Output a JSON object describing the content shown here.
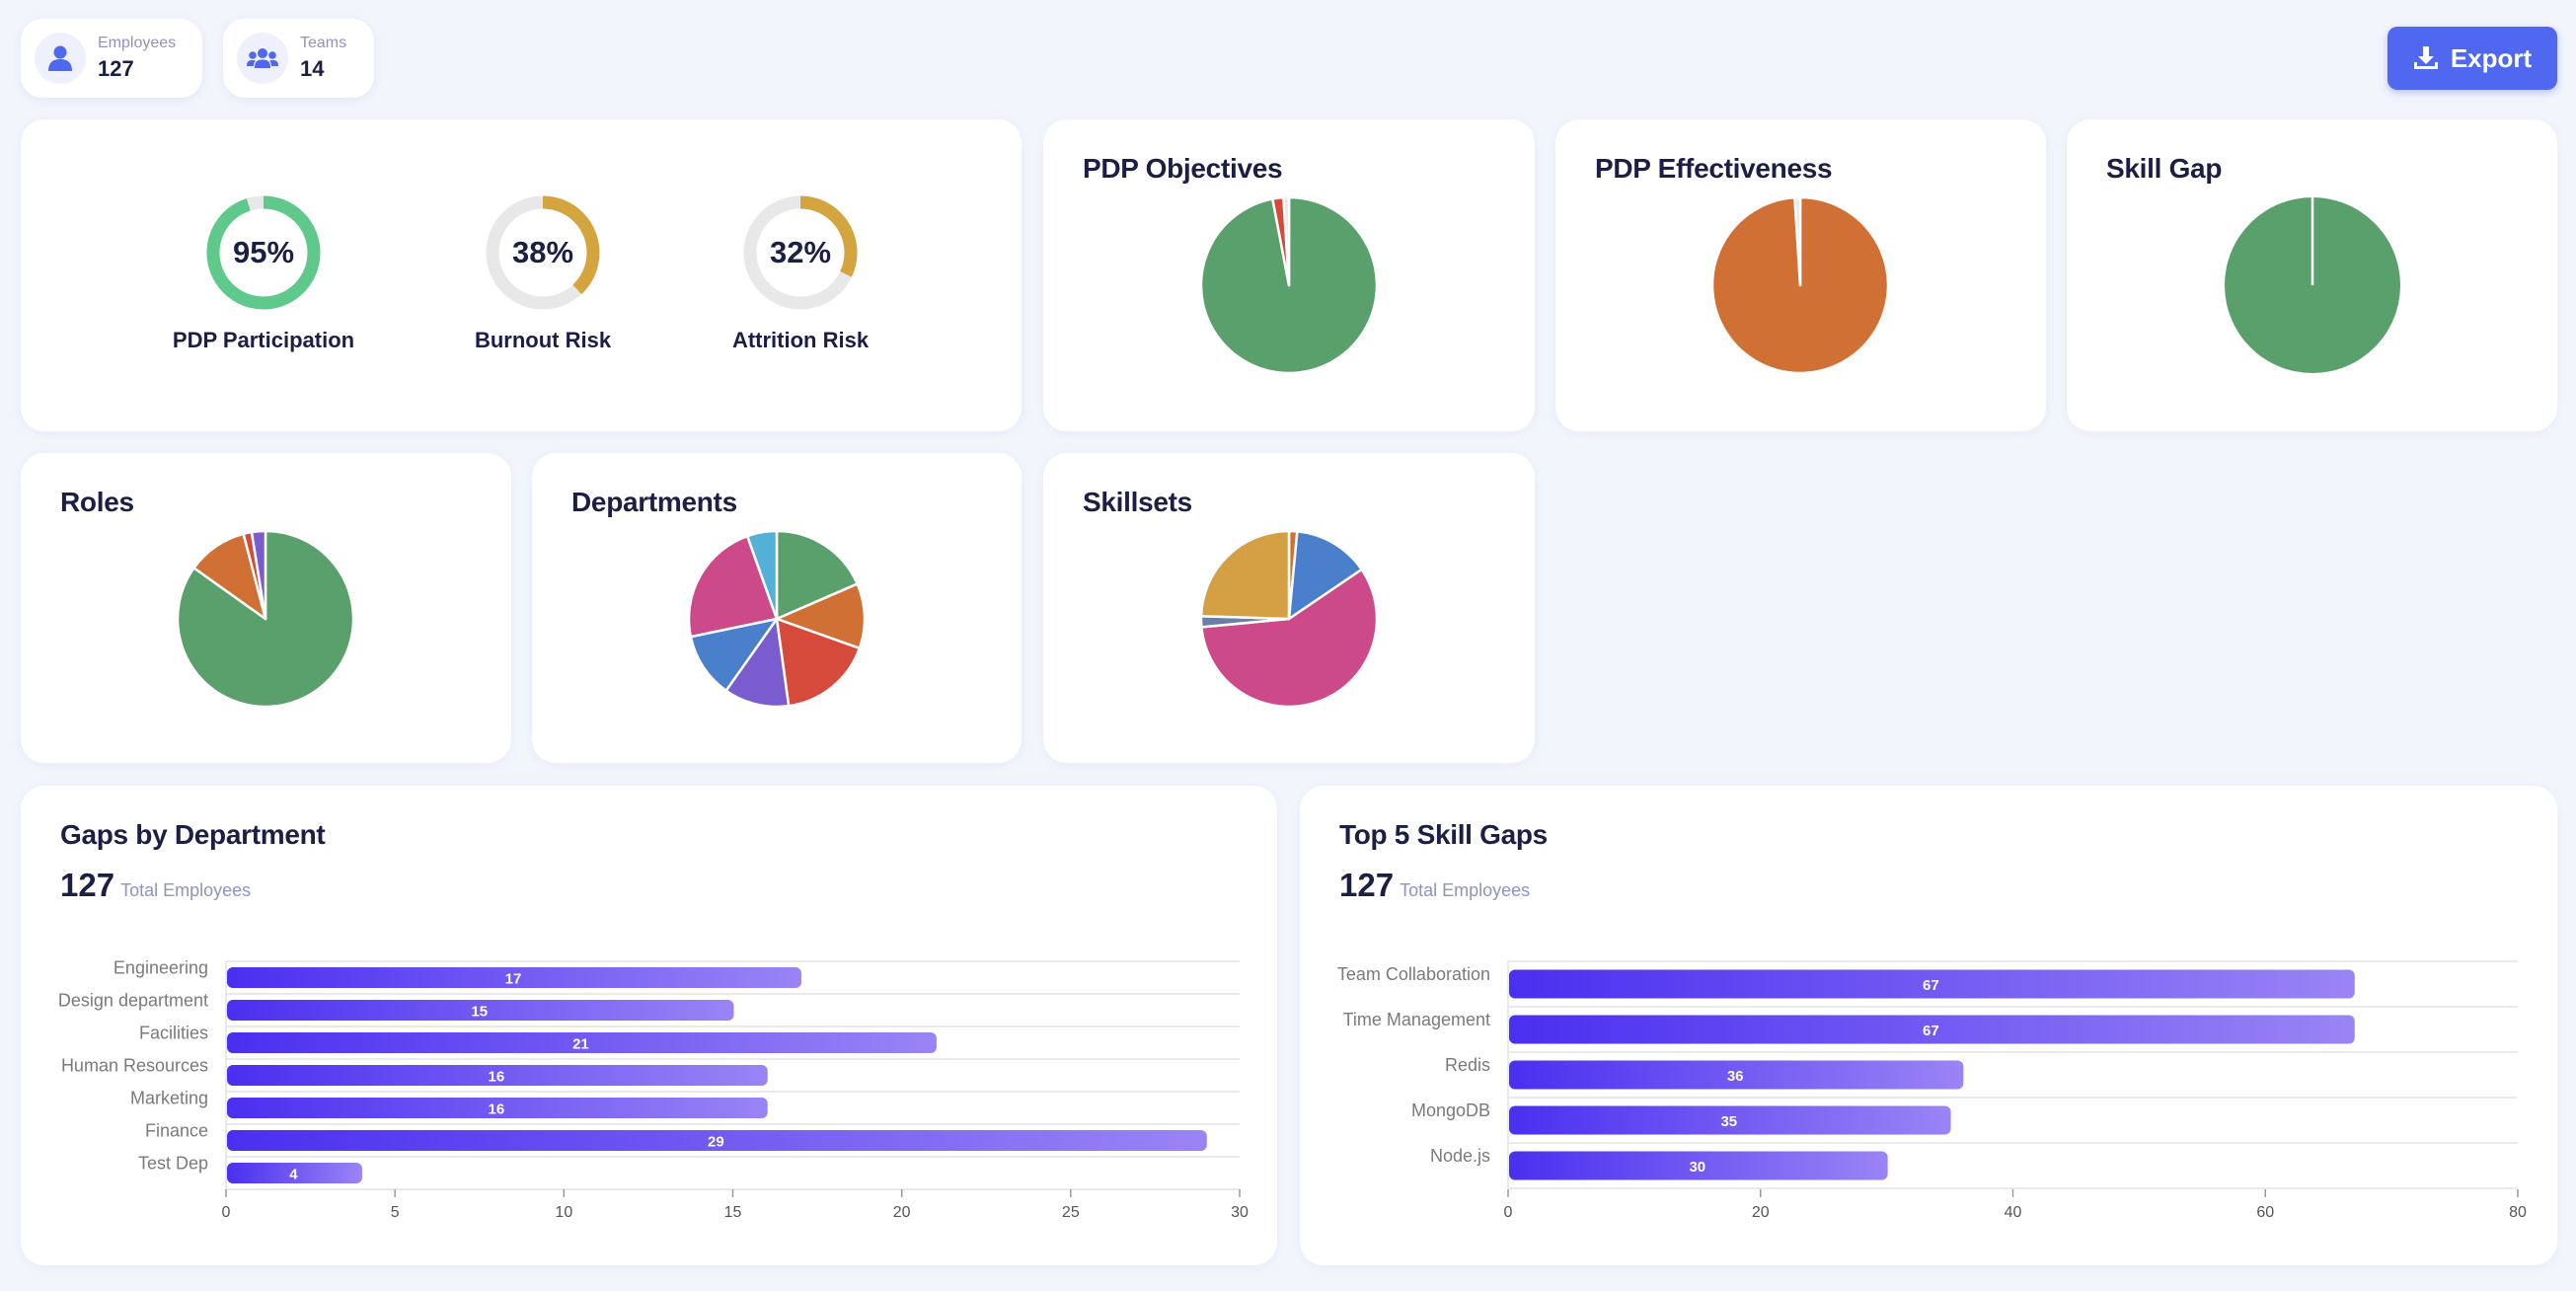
{
  "header": {
    "employees": {
      "label": "Employees",
      "value": "127"
    },
    "teams": {
      "label": "Teams",
      "value": "14"
    },
    "export_label": "Export"
  },
  "gauges": [
    {
      "value_text": "95%",
      "value": 95,
      "label": "PDP Participation",
      "color": "#5ec98a"
    },
    {
      "value_text": "38%",
      "value": 38,
      "label": "Burnout Risk",
      "color": "#d4a43f"
    },
    {
      "value_text": "32%",
      "value": 32,
      "label": "Attrition Risk",
      "color": "#d4a43f"
    }
  ],
  "pies": {
    "pdp_objectives": {
      "title": "PDP Objectives"
    },
    "pdp_effectiveness": {
      "title": "PDP Effectiveness"
    },
    "skill_gap": {
      "title": "Skill Gap"
    },
    "roles": {
      "title": "Roles"
    },
    "departments": {
      "title": "Departments"
    },
    "skillsets": {
      "title": "Skillsets"
    }
  },
  "bar_cards": {
    "gaps_by_department": {
      "title": "Gaps by Department",
      "total": "127",
      "total_label": "Total Employees"
    },
    "top5_skill_gaps": {
      "title": "Top 5 Skill Gaps",
      "total": "127",
      "total_label": "Total Employees"
    }
  },
  "chart_data": [
    {
      "type": "pie",
      "id": "pdp_objectives",
      "title": "PDP Objectives",
      "values": [
        97,
        2,
        1
      ],
      "colors": [
        "#5aa06c",
        "#d64a3c",
        "#e8e8e8"
      ]
    },
    {
      "type": "pie",
      "id": "pdp_effectiveness",
      "title": "PDP Effectiveness",
      "values": [
        99,
        1
      ],
      "colors": [
        "#d07035",
        "#e8e8e8"
      ]
    },
    {
      "type": "pie",
      "id": "skill_gap",
      "title": "Skill Gap",
      "values": [
        100
      ],
      "colors": [
        "#5aa06c"
      ]
    },
    {
      "type": "pie",
      "id": "roles",
      "title": "Roles",
      "values": [
        84,
        11,
        1.5,
        2.5
      ],
      "colors": [
        "#5aa06c",
        "#d07035",
        "#d64a3c",
        "#7b5ccf"
      ]
    },
    {
      "type": "pie",
      "id": "departments",
      "title": "Departments",
      "values": [
        17,
        11,
        16,
        11,
        11,
        21,
        5
      ],
      "colors": [
        "#5aa06c",
        "#d07035",
        "#d64a3c",
        "#7b5ccf",
        "#4a7fcc",
        "#cc4a8a",
        "#53b0d6"
      ]
    },
    {
      "type": "pie",
      "id": "skillsets",
      "title": "Skillsets",
      "values": [
        1.5,
        14,
        58,
        2,
        24.5
      ],
      "colors": [
        "#d07035",
        "#4a7fcc",
        "#cc4a8a",
        "#6a7fa8",
        "#d4a043"
      ]
    },
    {
      "type": "bar",
      "id": "gaps_by_department",
      "orientation": "horizontal",
      "categories": [
        "Engineering",
        "Design department",
        "Facilities",
        "Human Resources",
        "Marketing",
        "Finance",
        "Test Dep"
      ],
      "values": [
        17,
        15,
        21,
        16,
        16,
        29,
        4
      ],
      "xlim": [
        0,
        30
      ],
      "xticks": [
        0,
        5,
        10,
        15,
        20,
        25,
        30
      ]
    },
    {
      "type": "bar",
      "id": "top5_skill_gaps",
      "orientation": "horizontal",
      "categories": [
        "Team Collaboration",
        "Time Management",
        "Redis",
        "MongoDB",
        "Node.js"
      ],
      "values": [
        67,
        67,
        36,
        35,
        30
      ],
      "xlim": [
        0,
        80
      ],
      "xticks": [
        0,
        20,
        40,
        60,
        80
      ]
    }
  ]
}
